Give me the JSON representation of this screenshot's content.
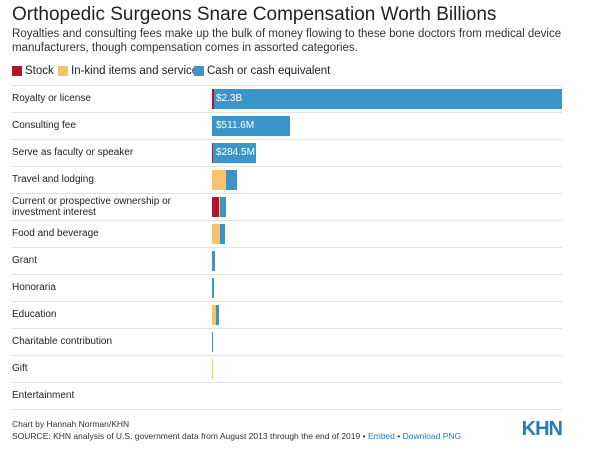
{
  "chart_data": {
    "type": "bar",
    "orientation": "horizontal",
    "stacked": true,
    "title": "Orthopedic Surgeons Snare Compensation Worth Billions",
    "subtitle": "Royalties and consulting fees make up the bulk of money flowing to these bone doctors from medical device manufacturers, though compensation comes in assorted categories.",
    "categories": [
      "Royalty or license",
      "Consulting fee",
      "Serve as faculty or speaker",
      "Travel and lodging",
      "Current or prospective ownership or investment interest",
      "Food and beverage",
      "Grant",
      "Honoraria",
      "Education",
      "Charitable contribution",
      "Gift",
      "Entertainment"
    ],
    "series": [
      {
        "name": "Stock",
        "color": "#b5152b",
        "values": [
          13000000,
          0,
          8000000,
          0,
          46000000,
          0,
          0,
          0,
          0,
          0,
          0,
          0
        ]
      },
      {
        "name": "In-kind items and services",
        "color": "#f7c46c",
        "values": [
          0,
          0,
          0,
          92000000,
          4000000,
          53000000,
          0,
          0,
          26000000,
          0,
          1000000,
          0
        ]
      },
      {
        "name": "Cash or cash equivalent",
        "color": "#3b95c8",
        "values": [
          2290000000,
          511600000,
          284500000,
          72000000,
          40000000,
          33000000,
          20000000,
          13000000,
          20000000,
          2000000,
          0,
          0
        ],
        "value_labels": [
          "$2.3B",
          "$511.6M",
          "$284.5M",
          null,
          null,
          null,
          null,
          null,
          null,
          null,
          null,
          null
        ]
      }
    ],
    "xlim": [
      0,
      2303000000
    ],
    "credit": "Chart by Hannah Norman/KHN",
    "source": "SOURCE: KHN analysis of U.S. government data from August 2013 through the end of 2019",
    "links": [
      "Embed",
      "Download PNG"
    ],
    "logo": "KHN"
  }
}
